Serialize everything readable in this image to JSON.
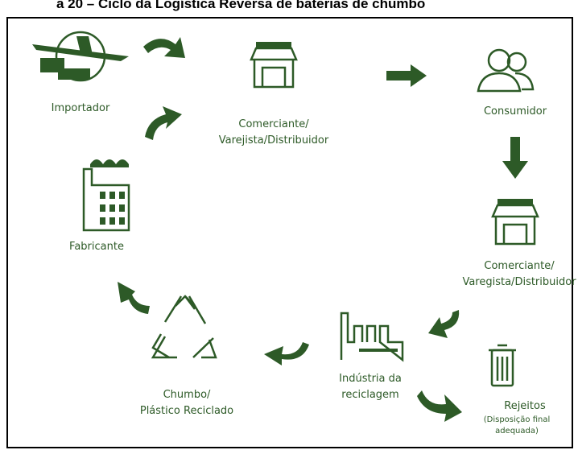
{
  "header": {
    "title": "a 20 – Ciclo da Logística Reversa de baterias de chumbo"
  },
  "nodes": [
    {
      "label": [
        "Importador"
      ]
    },
    {
      "label": [
        "Comerciante/",
        "Varejista/Distribuidor"
      ]
    },
    {
      "label": [
        "Consumidor"
      ]
    },
    {
      "label": [
        "Comerciante/",
        "Varegista/Distribuidor"
      ]
    },
    {
      "label": [
        "Rejeitos"
      ],
      "note": [
        "(Disposição final",
        "adequada)"
      ]
    },
    {
      "label": [
        "Indústria da",
        "reciclagem"
      ]
    },
    {
      "label": [
        "Chumbo/",
        "Plástico Reciclado"
      ]
    },
    {
      "label": [
        "Fabricante"
      ]
    }
  ]
}
